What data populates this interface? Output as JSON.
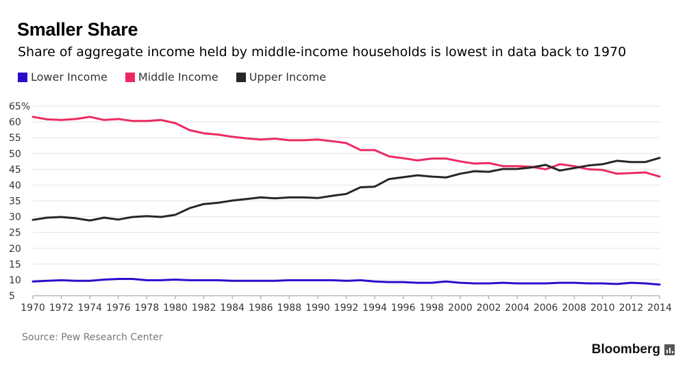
{
  "header": {
    "title": "Smaller Share",
    "subtitle": "Share of aggregate income held by middle-income households is lowest in data back to 1970"
  },
  "legend": [
    {
      "label": "Lower Income",
      "color": "#2c0ccc"
    },
    {
      "label": "Middle Income",
      "color": "#ec2a62"
    },
    {
      "label": "Upper Income",
      "color": "#262626"
    }
  ],
  "footer": {
    "source": "Source: Pew Research Center",
    "brand": "Bloomberg",
    "brand_icon": "bar-chart-icon"
  },
  "chart_data": {
    "type": "line",
    "ylim": [
      5,
      65
    ],
    "xlim": [
      1970,
      2014
    ],
    "y_ticks": [
      "65%",
      "60",
      "55",
      "50",
      "45",
      "40",
      "35",
      "30",
      "25",
      "20",
      "15",
      "10",
      "5"
    ],
    "x_ticks": [
      "1970",
      "1972",
      "1974",
      "1976",
      "1978",
      "1980",
      "1982",
      "1984",
      "1986",
      "1988",
      "1990",
      "1992",
      "1994",
      "1996",
      "1998",
      "2000",
      "2002",
      "2004",
      "2006",
      "2008",
      "2010",
      "2012",
      "2014"
    ],
    "grid": true,
    "legend_position": "top-left",
    "x": [
      1970,
      1971,
      1972,
      1973,
      1974,
      1975,
      1976,
      1977,
      1978,
      1979,
      1980,
      1981,
      1982,
      1983,
      1984,
      1985,
      1986,
      1987,
      1988,
      1989,
      1990,
      1991,
      1992,
      1993,
      1994,
      1995,
      1996,
      1997,
      1998,
      1999,
      2000,
      2001,
      2002,
      2003,
      2004,
      2005,
      2006,
      2007,
      2008,
      2009,
      2010,
      2011,
      2012,
      2013,
      2014
    ],
    "series": [
      {
        "name": "Lower Income",
        "color": "#2c0ccc",
        "values": [
          9.5,
          9.7,
          9.9,
          9.7,
          9.7,
          10.1,
          10.3,
          10.3,
          9.9,
          9.9,
          10.1,
          9.9,
          9.9,
          9.9,
          9.7,
          9.7,
          9.7,
          9.7,
          9.9,
          9.9,
          9.9,
          9.9,
          9.7,
          9.9,
          9.5,
          9.3,
          9.3,
          9.1,
          9.1,
          9.5,
          9.1,
          8.9,
          8.9,
          9.1,
          8.9,
          8.9,
          8.9,
          9.1,
          9.1,
          8.9,
          8.9,
          8.7,
          9.1,
          8.9,
          8.5
        ]
      },
      {
        "name": "Middle Income",
        "color": "#ec2a62",
        "values": [
          61.6,
          60.8,
          60.6,
          60.9,
          61.6,
          60.6,
          60.9,
          60.3,
          60.3,
          60.6,
          59.6,
          57.4,
          56.4,
          56.0,
          55.3,
          54.8,
          54.4,
          54.7,
          54.2,
          54.2,
          54.4,
          53.9,
          53.3,
          51.1,
          51.1,
          49.1,
          48.5,
          47.8,
          48.4,
          48.4,
          47.5,
          46.8,
          47.0,
          46.0,
          46.0,
          45.8,
          45.0,
          46.6,
          46.0,
          45.0,
          44.8,
          43.6,
          43.8,
          44.0,
          42.7
        ]
      },
      {
        "name": "Upper Income",
        "color": "#262626",
        "values": [
          29.0,
          29.7,
          29.9,
          29.5,
          28.8,
          29.7,
          29.1,
          29.9,
          30.2,
          29.9,
          30.6,
          32.7,
          34.0,
          34.4,
          35.1,
          35.6,
          36.1,
          35.8,
          36.1,
          36.1,
          35.9,
          36.6,
          37.2,
          39.3,
          39.5,
          41.9,
          42.5,
          43.1,
          42.7,
          42.4,
          43.6,
          44.4,
          44.2,
          45.1,
          45.1,
          45.6,
          46.4,
          44.6,
          45.4,
          46.2,
          46.6,
          47.7,
          47.3,
          47.3,
          48.6
        ]
      }
    ]
  }
}
